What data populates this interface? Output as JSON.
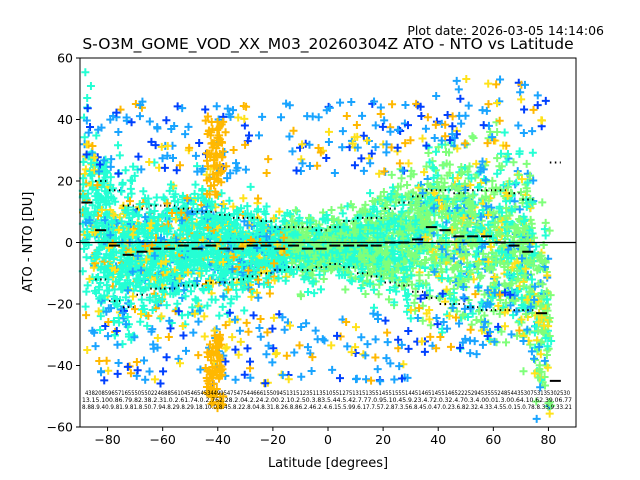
{
  "plot_date": "Plot date: 2026-03-05 14:14:06",
  "chart_data": {
    "type": "scatter",
    "title": "S-O3M_GOME_VOD_XX_M03_20260304Z ATO - NTO vs Latitude",
    "xlabel": "Latitude [degrees]",
    "ylabel": "ATO - NTO [DU]",
    "xlim": [
      -90,
      90
    ],
    "ylim": [
      -60,
      60
    ],
    "xticks": [
      -80,
      -60,
      -40,
      -20,
      0,
      20,
      40,
      60,
      80
    ],
    "yticks": [
      -60,
      -40,
      -20,
      0,
      20,
      40,
      60
    ],
    "reference_line_y": 0,
    "bin_centers": [
      -87.5,
      -82.5,
      -77.5,
      -72.5,
      -67.5,
      -62.5,
      -57.5,
      -52.5,
      -47.5,
      -42.5,
      -37.5,
      -32.5,
      -27.5,
      -22.5,
      -17.5,
      -12.5,
      -7.5,
      -2.5,
      2.5,
      7.5,
      12.5,
      17.5,
      22.5,
      27.5,
      32.5,
      37.5,
      42.5,
      47.5,
      52.5,
      57.5,
      62.5,
      67.5,
      72.5,
      77.5,
      82.5
    ],
    "bin_mean": [
      13,
      4,
      -1,
      -4,
      -3,
      -2,
      -2,
      -1,
      -2,
      -1,
      -2,
      -2,
      -1,
      -1,
      -2,
      -1,
      -2,
      -2,
      -1,
      -1,
      -1,
      -1,
      0,
      0,
      1,
      5,
      4,
      2,
      2,
      2,
      0,
      -1,
      -3,
      -23,
      -45
    ],
    "bin_mean_plus_sd": [
      null,
      20,
      17,
      12,
      11,
      12,
      12,
      11,
      10,
      10,
      9,
      8,
      8,
      7,
      5,
      5,
      5,
      4,
      5,
      7,
      8,
      8,
      11,
      13,
      15,
      17,
      17,
      16,
      17,
      17,
      17,
      16,
      14,
      null,
      26
    ],
    "bin_mean_minus_sd": [
      null,
      -12,
      -19,
      -21,
      -17,
      -15,
      -15,
      -14,
      -14,
      -13,
      -13,
      -12,
      -11,
      -10,
      -9,
      -8,
      -9,
      -8,
      -7,
      -8,
      -10,
      -11,
      -13,
      -14,
      -16,
      -18,
      -20,
      -20,
      -21,
      -22,
      -22,
      -22,
      -22,
      null,
      null
    ],
    "bin_counts": [
      "438",
      "2083",
      "5965",
      "7165",
      "5505",
      "5022",
      "4688",
      "5610",
      "4548",
      "5453",
      "4499",
      "5447",
      "5447",
      "5446",
      "6615",
      "5094",
      "5113",
      "5812",
      "5120",
      "5105",
      "5123",
      "5133",
      "5143",
      "5152",
      "5142",
      "5149",
      "5135",
      "5223",
      "5294",
      "5355",
      "5248",
      "5433",
      "5302",
      "5213",
      "30"
    ],
    "bin_counts_visible_text": "438208596571655505502246885610454654534499547547544666155094513151235113510551275131513551455155514451465145514652225294535552485443530753135302530",
    "bin_stats_row2_visible_text": "13.15.100.86.79.82.38.2.31.0.2.61.74.0.2.762.28.2.04.2.24.2.00.2.10.2.50.3.83.5.44.5.42.7.77.0.95.10.45.9.23.4.72.0.32.4.70.3.4.00.01.3.00.64.10.62.39.06.77",
    "bin_stats_row3_visible_text": "8.88.9.40.9.81.9.81.8.50.7.94.8.29.8.29.18.10.0.8.45.8.22.8.04.8.31.8.26.8.86.2.46.2.4.6.15.5.99.6.17.7.57.2.87.3.56.8.45.0.47.0.23.6.82.32.4.33.4.55.0.15.0.78.8.33.9.33.21",
    "series": [
      {
        "name": "cyan-green density",
        "color": "#24ffd4"
      },
      {
        "name": "light green density",
        "color": "#7fff7a"
      },
      {
        "name": "yellow",
        "color": "#ffe21a"
      },
      {
        "name": "orange",
        "color": "#ffb800"
      },
      {
        "name": "light blue",
        "color": "#19a4ff"
      },
      {
        "name": "blue",
        "color": "#0040ff"
      }
    ]
  }
}
